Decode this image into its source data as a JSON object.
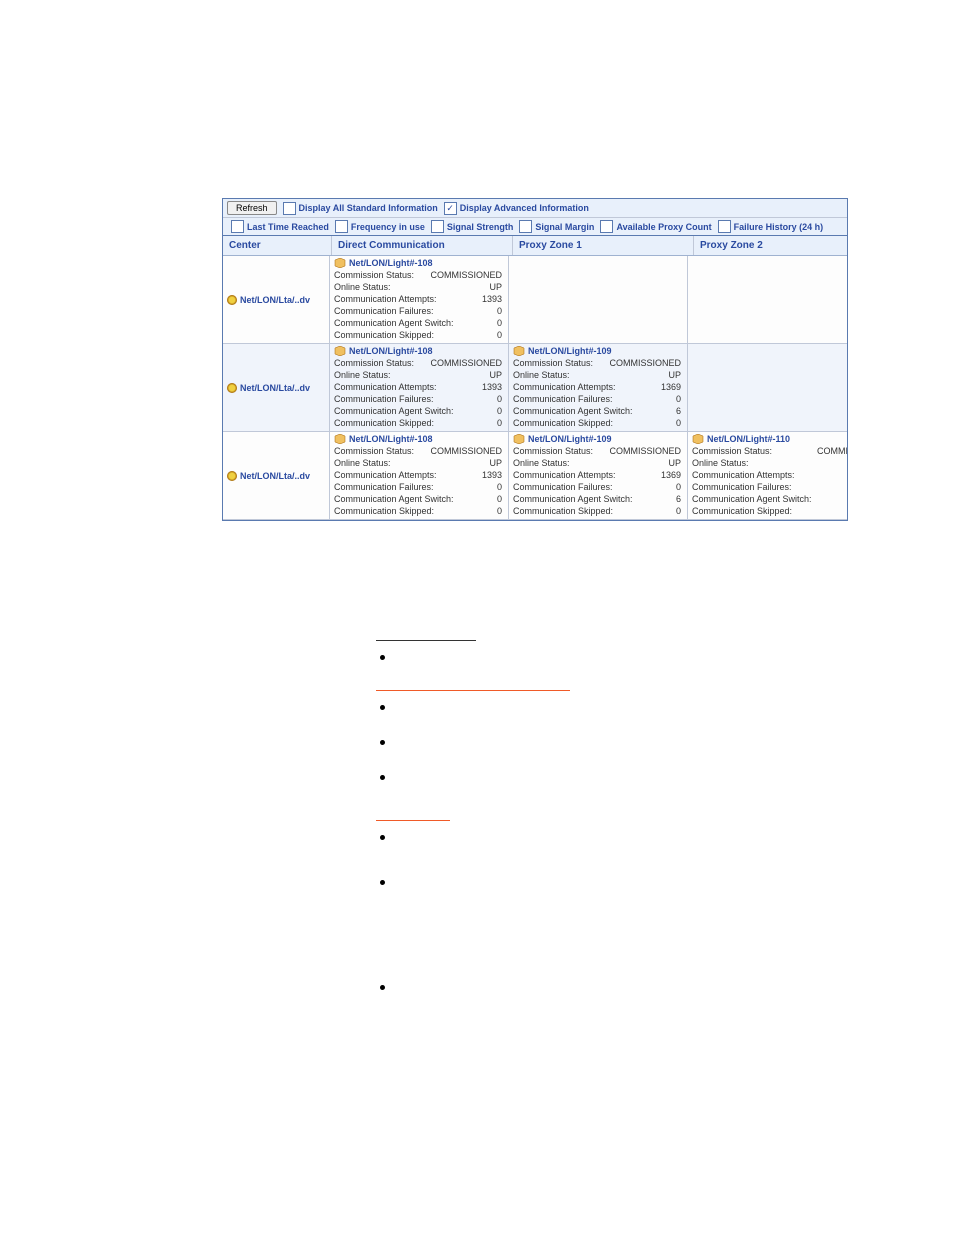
{
  "toolbar": {
    "refresh": "Refresh",
    "display_standard": "Display All Standard Information",
    "display_advanced": "Display Advanced Information"
  },
  "filters": {
    "last_time": "Last Time Reached",
    "frequency": "Frequency in use",
    "signal_strength": "Signal Strength",
    "signal_margin": "Signal Margin",
    "proxy_count": "Available Proxy Count",
    "failure_history": "Failure History (24 h)"
  },
  "columns": {
    "center": "Center",
    "direct": "Direct Communication",
    "zone1": "Proxy Zone 1",
    "zone2": "Proxy Zone 2"
  },
  "labels": {
    "commission_status": "Commission Status:",
    "online_status": "Online Status:",
    "comm_attempts": "Communication Attempts:",
    "comm_failures": "Communication Failures:",
    "agent_switch": "Communication Agent Switch:",
    "comm_skipped": "Communication Skipped:"
  },
  "rows": [
    {
      "center": "Net/LON/Lta/..dv",
      "nodes": [
        {
          "title": "Net/LON/Light#-108",
          "commission": "COMMISSIONED",
          "online": "UP",
          "attempts": "1393",
          "failures": "0",
          "switch": "0",
          "skipped": "0"
        }
      ]
    },
    {
      "center": "Net/LON/Lta/..dv",
      "nodes": [
        {
          "title": "Net/LON/Light#-108",
          "commission": "COMMISSIONED",
          "online": "UP",
          "attempts": "1393",
          "failures": "0",
          "switch": "0",
          "skipped": "0"
        },
        {
          "title": "Net/LON/Light#-109",
          "commission": "COMMISSIONED",
          "online": "UP",
          "attempts": "1369",
          "failures": "0",
          "switch": "6",
          "skipped": "0"
        }
      ]
    },
    {
      "center": "Net/LON/Lta/..dv",
      "nodes": [
        {
          "title": "Net/LON/Light#-108",
          "commission": "COMMISSIONED",
          "online": "UP",
          "attempts": "1393",
          "failures": "0",
          "switch": "0",
          "skipped": "0"
        },
        {
          "title": "Net/LON/Light#-109",
          "commission": "COMMISSIONED",
          "online": "UP",
          "attempts": "1369",
          "failures": "0",
          "switch": "6",
          "skipped": "0"
        },
        {
          "title": "Net/LON/Light#-110",
          "commission": "COMMISS",
          "online": "",
          "attempts": "",
          "failures": "",
          "switch": "",
          "skipped": ""
        }
      ]
    }
  ]
}
